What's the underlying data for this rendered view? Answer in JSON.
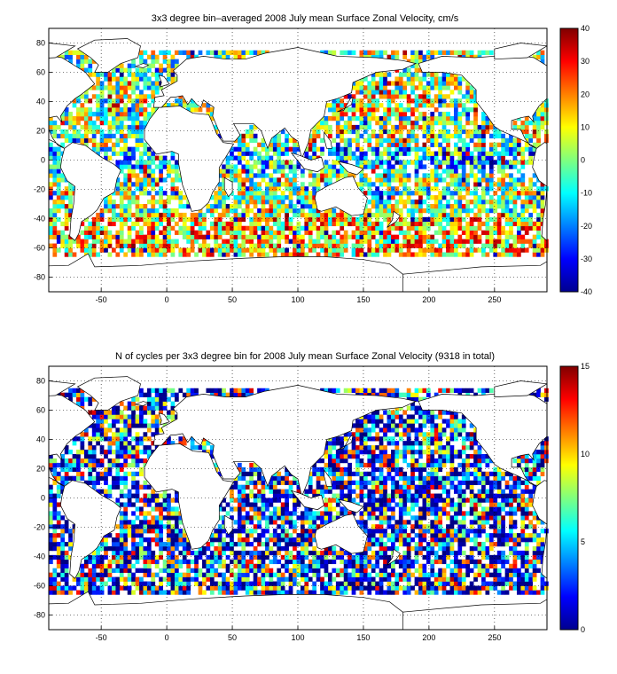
{
  "chart_data": [
    {
      "type": "heatmap",
      "title": "3x3 degree bin–averaged 2008 July mean Surface Zonal Velocity, cm/s",
      "xlabel": "",
      "ylabel": "",
      "xlim": [
        -90,
        290
      ],
      "ylim": [
        -90,
        90
      ],
      "x_ticks": [
        "-50",
        "0",
        "50",
        "100",
        "150",
        "200",
        "250"
      ],
      "y_ticks": [
        "80",
        "60",
        "40",
        "20",
        "0",
        "-20",
        "-40",
        "-60",
        "-80"
      ],
      "colorbar": {
        "min": -40,
        "max": 40,
        "ticks": [
          "40",
          "30",
          "20",
          "10",
          "0",
          "-10",
          "-20",
          "-30",
          "-40"
        ],
        "colormap": "jet"
      },
      "grid": true,
      "bin_size_deg": 3
    },
    {
      "type": "heatmap",
      "title": "N of cycles per 3x3 degree bin for 2008 July mean Surface Zonal Velocity (9318 in total)",
      "xlabel": "",
      "ylabel": "",
      "xlim": [
        -90,
        290
      ],
      "ylim": [
        -90,
        90
      ],
      "x_ticks": [
        "-50",
        "0",
        "50",
        "100",
        "150",
        "200",
        "250"
      ],
      "y_ticks": [
        "80",
        "60",
        "40",
        "20",
        "0",
        "-20",
        "-40",
        "-60",
        "-80"
      ],
      "colorbar": {
        "min": 0,
        "max": 15,
        "ticks": [
          "15",
          "10",
          "5",
          "0"
        ],
        "colormap": "jet"
      },
      "grid": true,
      "bin_size_deg": 3,
      "total_cycles": 9318
    }
  ]
}
